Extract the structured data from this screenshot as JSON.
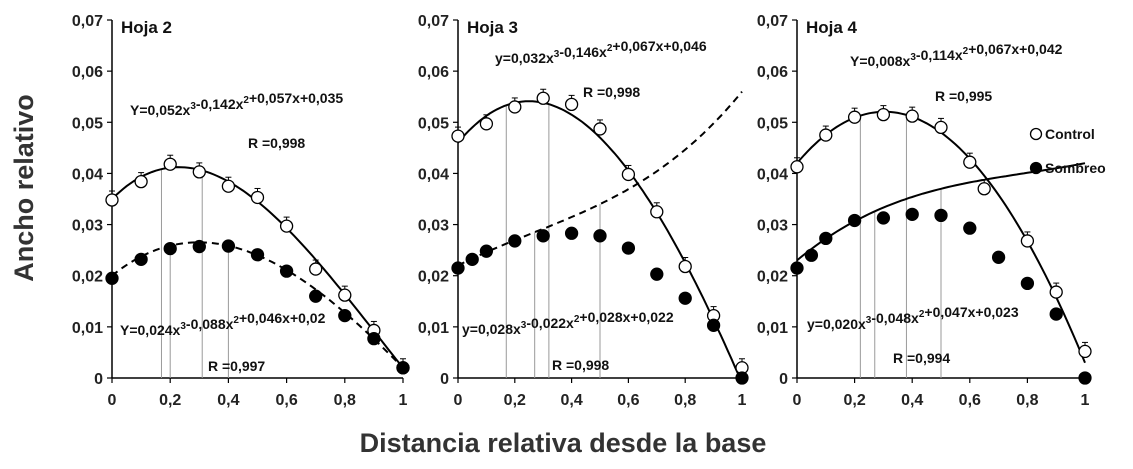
{
  "figure": {
    "ylabel": "Ancho relativo",
    "xlabel": "Distancia relativa desde la base",
    "legend": {
      "placement": "right",
      "entries": [
        {
          "name": "Control",
          "marker": "open-circle"
        },
        {
          "name": "Sombreo",
          "marker": "filled-circle"
        }
      ]
    },
    "colors": {
      "axis": "#000000",
      "control_fill": "#ffffff",
      "sombreo_fill": "#000000"
    }
  },
  "chart_data": [
    {
      "type": "scatter",
      "title": "Hoja 2",
      "x_ticks": [
        "0",
        "0,2",
        "0,4",
        "0,6",
        "0,8",
        "1"
      ],
      "y_ticks": [
        "0",
        "0,01",
        "0,02",
        "0,03",
        "0,04",
        "0,05",
        "0,06",
        "0,07"
      ],
      "xlim": [
        0,
        1
      ],
      "ylim": [
        0,
        0.07
      ],
      "series": [
        {
          "name": "Control",
          "x": [
            0,
            0.1,
            0.2,
            0.3,
            0.4,
            0.5,
            0.6,
            0.7,
            0.8,
            0.9,
            1.0
          ],
          "y": [
            0.0348,
            0.0384,
            0.0418,
            0.0403,
            0.0375,
            0.0353,
            0.0297,
            0.0213,
            0.0162,
            0.0093,
            0.002
          ],
          "fit": {
            "equation": "Y=0,052x³-0,142x²+0,057x+0,035",
            "r": "R =0,998",
            "coef": [
              0.052,
              -0.142,
              0.057,
              0.035
            ],
            "style": "solid"
          },
          "vlines": [
            0.17,
            0.31
          ]
        },
        {
          "name": "Sombreo",
          "x": [
            0,
            0.1,
            0.2,
            0.3,
            0.4,
            0.5,
            0.6,
            0.7,
            0.8,
            0.9,
            1.0
          ],
          "y": [
            0.0195,
            0.0232,
            0.0253,
            0.0257,
            0.0258,
            0.0241,
            0.0209,
            0.016,
            0.0122,
            0.0077,
            0.002
          ],
          "fit": {
            "equation": "Y=0,024x³-0,088x²+0,046x+0,02",
            "r": "R =0,997",
            "coef": [
              0.024,
              -0.088,
              0.046,
              0.02
            ],
            "style": "dashed"
          },
          "vlines": [
            0.2,
            0.4
          ]
        }
      ]
    },
    {
      "type": "scatter",
      "title": "Hoja 3",
      "x_ticks": [
        "0",
        "0,2",
        "0,4",
        "0,6",
        "0,8",
        "1"
      ],
      "y_ticks": [
        "0",
        "0,01",
        "0,02",
        "0,03",
        "0,04",
        "0,05",
        "0,06",
        "0,07"
      ],
      "xlim": [
        0,
        1
      ],
      "ylim": [
        0,
        0.07
      ],
      "series": [
        {
          "name": "Control",
          "x": [
            0,
            0.1,
            0.2,
            0.3,
            0.4,
            0.5,
            0.6,
            0.7,
            0.8,
            0.9,
            1.0
          ],
          "y": [
            0.0473,
            0.0497,
            0.053,
            0.0547,
            0.0535,
            0.0487,
            0.0398,
            0.0325,
            0.0218,
            0.0122,
            0.002
          ],
          "fit": {
            "equation": "y=0,032x³-0,146x²+0,067x+0,046",
            "r": "R =0,998",
            "coef": [
              0.032,
              -0.146,
              0.067,
              0.046
            ],
            "style": "solid"
          },
          "vlines": [
            0.17,
            0.32
          ]
        },
        {
          "name": "Sombreo",
          "x": [
            0,
            0.05,
            0.1,
            0.2,
            0.3,
            0.4,
            0.5,
            0.6,
            0.7,
            0.8,
            0.9,
            1.0
          ],
          "y": [
            0.0215,
            0.0232,
            0.0248,
            0.0268,
            0.0278,
            0.0283,
            0.0278,
            0.0254,
            0.0203,
            0.0156,
            0.0103,
            0.0
          ],
          "fit": {
            "equation": "y=0,028x³-0,022x²+0,028x+0,022",
            "r": "R =0,998",
            "coef": [
              0.028,
              -0.022,
              0.028,
              0.022
            ],
            "style": "dashed"
          },
          "vlines": [
            0.27,
            0.5
          ]
        }
      ]
    },
    {
      "type": "scatter",
      "title": "Hoja 4",
      "x_ticks": [
        "0",
        "0,2",
        "0,4",
        "0,6",
        "0,8",
        "1"
      ],
      "y_ticks": [
        "0",
        "0,01",
        "0,02",
        "0,03",
        "0,04",
        "0,05",
        "0,06",
        "0,07"
      ],
      "xlim": [
        0,
        1
      ],
      "ylim": [
        0,
        0.07
      ],
      "series": [
        {
          "name": "Control",
          "x": [
            0,
            0.1,
            0.2,
            0.3,
            0.4,
            0.5,
            0.6,
            0.65,
            0.8,
            0.9,
            1.0
          ],
          "y": [
            0.0413,
            0.0475,
            0.051,
            0.0515,
            0.0512,
            0.049,
            0.0422,
            0.037,
            0.0268,
            0.0168,
            0.0052
          ],
          "fit": {
            "equation": "Y=0,008x³-0,114x²+0,067x+0,042",
            "r": "R =0,995",
            "coef": [
              0.008,
              -0.114,
              0.067,
              0.042
            ],
            "style": "solid"
          },
          "vlines": [
            0.22,
            0.38
          ]
        },
        {
          "name": "Sombreo",
          "x": [
            0,
            0.05,
            0.1,
            0.2,
            0.3,
            0.4,
            0.5,
            0.6,
            0.7,
            0.8,
            0.9,
            1.0
          ],
          "y": [
            0.0215,
            0.024,
            0.0273,
            0.0308,
            0.0313,
            0.032,
            0.0318,
            0.0293,
            0.0236,
            0.0185,
            0.0125,
            0.0
          ],
          "fit": {
            "equation": "y=0,020x³-0,048x²+0,047x+0,023",
            "r": "R =0,994",
            "coef": [
              0.02,
              -0.048,
              0.047,
              0.023
            ],
            "style": "solid"
          },
          "vlines": [
            0.27,
            0.5
          ]
        }
      ]
    }
  ]
}
